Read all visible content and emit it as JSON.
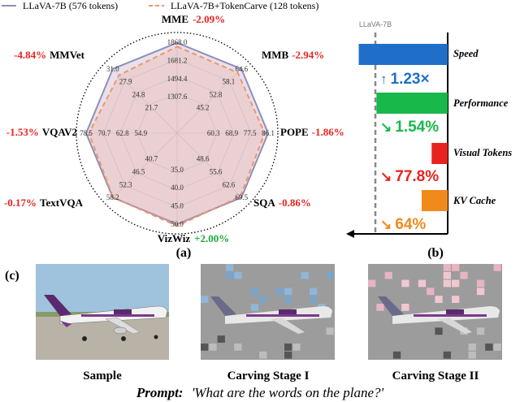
{
  "legend": [
    {
      "label": "LLaVA-7B (576 tokens)",
      "color": "#8f8fb8",
      "dash": false
    },
    {
      "label": "LLaVA-7B+TokenCarve (128 tokens)",
      "color": "#f0956a",
      "dash": true
    }
  ],
  "panel_a_caption": "(a)",
  "panel_b_caption": "(b)",
  "panel_c_caption": "(c)",
  "chart_data": [
    {
      "type": "radar",
      "axes": [
        "MME",
        "MMB",
        "POPE",
        "SQA",
        "VizWiz",
        "TextVQA",
        "VQAV2",
        "MMVet"
      ],
      "deltas": [
        "-2.09%",
        "-2.94%",
        "-1.86%",
        "-0.86%",
        "+2.00%",
        "-0.17%",
        "-1.53%",
        "-4.84%"
      ],
      "delta_colors": [
        "#e8231f",
        "#e8231f",
        "#e8231f",
        "#e8231f",
        "#1fa83a",
        "#e8231f",
        "#e8231f",
        "#e8231f"
      ],
      "ticks": [
        [
          "1307.6",
          "1494.4",
          "1681.2",
          "1868.0"
        ],
        [
          "45.2",
          "52.8",
          "58.1",
          "64.6"
        ],
        [
          "60.3",
          "68.9",
          "77.5",
          "86.1"
        ],
        [
          "48.6",
          "55.6",
          "62.6",
          "69.5"
        ],
        [
          "35.0",
          "40.0",
          "45.0",
          "50.0"
        ],
        [
          "40.7",
          "46.5",
          "52.3",
          "58.2"
        ],
        [
          "54.9",
          "62.8",
          "70.7",
          "78.5"
        ],
        [
          "21.7",
          "24.8",
          "27.9",
          "31.0"
        ]
      ],
      "series": [
        {
          "name": "LLaVA-7B (576 tokens)",
          "values": [
            1862,
            64.6,
            86.1,
            69.5,
            50.0,
            58.2,
            78.5,
            31.0
          ]
        },
        {
          "name": "LLaVA-7B+TokenCarve (128 tokens)",
          "values": [
            1823,
            62.7,
            84.5,
            68.9,
            51.0,
            58.1,
            77.3,
            29.5
          ]
        }
      ],
      "grid": true
    },
    {
      "type": "bar",
      "orientation": "horizontal",
      "reference_label": "LLaVA-7B",
      "categories": [
        "Speed",
        "Performance",
        "Visual Tokens",
        "KV Cache"
      ],
      "values": [
        1.23,
        0.985,
        0.222,
        0.36
      ],
      "colors": [
        "#1f6fc9",
        "#18b84a",
        "#e8231f",
        "#f08a1c"
      ],
      "annotations": [
        "1.23×",
        "1.54%",
        "77.8%",
        "64%"
      ],
      "annotation_colors": [
        "#1f6fc9",
        "#18b84a",
        "#e8231f",
        "#f08a1c"
      ]
    }
  ],
  "samples": [
    {
      "label": "Sample"
    },
    {
      "label": "Carving Stage I"
    },
    {
      "label": "Carving Stage II"
    }
  ],
  "prompt": {
    "label": "Prompt:",
    "text": "'What are the words on the plane?'"
  }
}
